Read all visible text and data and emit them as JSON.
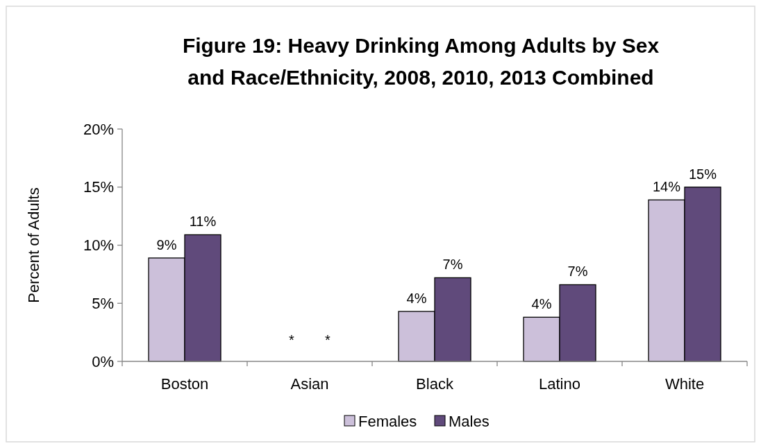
{
  "chart_data": {
    "type": "bar",
    "title": "Figure 19: Heavy Drinking Among Adults by Sex and Race/Ethnicity, 2008, 2010, 2013 Combined",
    "ylabel": "Percent of Adults",
    "categories": [
      "Boston",
      "Asian",
      "Black",
      "Latino",
      "White"
    ],
    "series": [
      {
        "name": "Females",
        "color": "#ccc0da",
        "values": [
          8.9,
          null,
          4.3,
          3.8,
          13.9
        ],
        "value_labels": [
          "9%",
          "*",
          "4%",
          "4%",
          "14%"
        ]
      },
      {
        "name": "Males",
        "color": "#604a7b",
        "values": [
          10.9,
          null,
          7.2,
          6.6,
          15.0
        ],
        "value_labels": [
          "11%",
          "*",
          "7%",
          "7%",
          "15%"
        ]
      }
    ],
    "ylim": [
      0,
      20
    ],
    "yticks": [
      {
        "value": 0,
        "label": "0%"
      },
      {
        "value": 5,
        "label": "5%"
      },
      {
        "value": 10,
        "label": "10%"
      },
      {
        "value": 15,
        "label": "15%"
      },
      {
        "value": 20,
        "label": "20%"
      }
    ],
    "grid": false,
    "legend": "bottom"
  }
}
